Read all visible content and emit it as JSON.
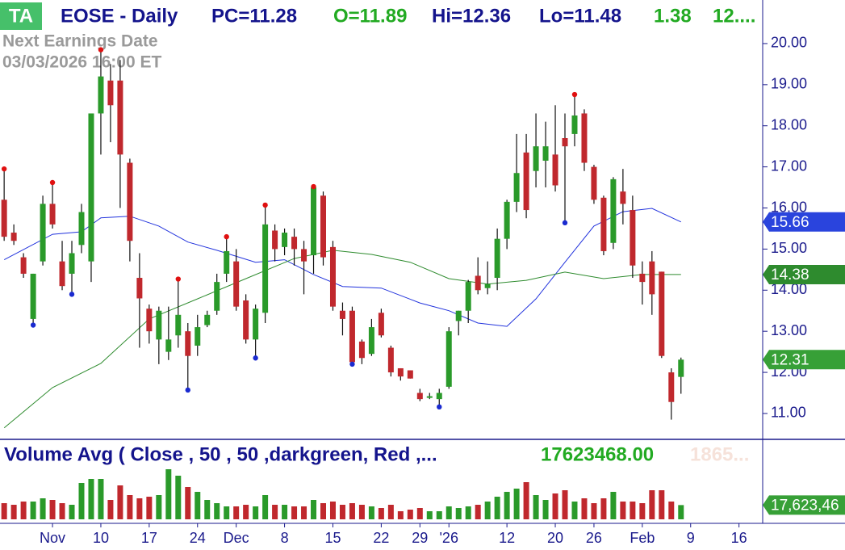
{
  "chart_data": [
    {
      "type": "candlestick",
      "badge": "TA",
      "title": "EOSE - Daily",
      "stats": [
        {
          "text": "PC=11.28",
          "color": "#14148c"
        },
        {
          "text": "O=11.89",
          "color": "#22aa22"
        },
        {
          "text": "Hi=12.36",
          "color": "#14148c"
        },
        {
          "text": "Lo=11.48",
          "color": "#14148c"
        },
        {
          "text": "1.38",
          "color": "#22aa22"
        },
        {
          "text": "12....",
          "color": "#22aa22"
        }
      ],
      "annotation": [
        "Next Earnings Date",
        "03/03/2026   16:00 ET"
      ],
      "x": [
        0,
        1,
        2,
        3,
        4,
        5,
        6,
        7,
        8,
        9,
        10,
        11,
        12,
        13,
        14,
        15,
        16,
        17,
        18,
        19,
        20,
        21,
        22,
        23,
        24,
        25,
        26,
        27,
        28,
        29,
        30,
        31,
        32,
        33,
        34,
        35,
        36,
        37,
        38,
        39,
        40,
        41,
        42,
        43,
        44,
        45,
        46,
        47,
        48,
        49,
        50,
        51,
        52,
        53,
        54,
        55,
        56,
        57,
        58,
        59,
        60,
        61,
        62,
        63,
        64,
        65,
        66,
        67,
        68,
        69,
        70
      ],
      "open": [
        16.2,
        15.4,
        14.8,
        13.3,
        14.7,
        16.1,
        14.7,
        14.4,
        15.1,
        14.7,
        18.3,
        19.1,
        19.1,
        17.1,
        14.3,
        13.55,
        12.8,
        12.5,
        12.9,
        13.0,
        12.65,
        13.15,
        13.5,
        14.4,
        14.7,
        13.75,
        12.8,
        13.45,
        15.45,
        15.05,
        15.3,
        15.0,
        14.85,
        16.3,
        15.05,
        13.5,
        13.5,
        12.75,
        12.45,
        13.45,
        12.6,
        12.1,
        12.05,
        11.5,
        11.38,
        11.35,
        11.65,
        13.25,
        13.5,
        14.35,
        14.05,
        14.3,
        15.25,
        16.15,
        17.35,
        16.9,
        17.15,
        17.3,
        17.7,
        17.8,
        18.3,
        17.0,
        16.25,
        15.15,
        16.4,
        15.95,
        14.4,
        14.7,
        14.45,
        12.0,
        11.89
      ],
      "high": [
        16.95,
        15.6,
        14.9,
        14.4,
        16.3,
        16.62,
        15.2,
        15.2,
        16.1,
        18.3,
        19.85,
        19.5,
        19.6,
        17.2,
        14.9,
        13.65,
        13.6,
        13.6,
        14.27,
        13.2,
        13.4,
        13.5,
        14.4,
        15.3,
        15.0,
        13.9,
        13.65,
        16.07,
        15.6,
        15.5,
        15.5,
        15.2,
        16.52,
        16.4,
        15.2,
        13.7,
        13.6,
        12.8,
        13.3,
        13.55,
        12.65,
        12.1,
        12.05,
        11.6,
        11.5,
        11.6,
        13.1,
        13.5,
        14.25,
        14.8,
        14.7,
        15.5,
        16.2,
        17.8,
        17.8,
        18.3,
        18.1,
        18.5,
        18.3,
        18.76,
        18.4,
        17.05,
        16.3,
        16.75,
        16.95,
        16.3,
        14.7,
        14.95,
        14.45,
        12.1,
        12.36
      ],
      "low": [
        15.2,
        15.1,
        14.3,
        13.15,
        14.6,
        15.5,
        14.0,
        13.9,
        14.9,
        14.2,
        17.3,
        17.6,
        16.0,
        14.7,
        12.6,
        12.7,
        12.2,
        12.3,
        12.6,
        11.57,
        12.4,
        13.1,
        13.4,
        14.2,
        13.5,
        12.7,
        12.35,
        13.2,
        14.7,
        14.85,
        14.6,
        13.9,
        14.4,
        14.6,
        13.5,
        12.9,
        12.2,
        12.2,
        12.4,
        12.85,
        11.9,
        11.8,
        11.85,
        11.3,
        11.35,
        11.16,
        11.6,
        12.9,
        13.2,
        13.9,
        13.9,
        14.0,
        15.0,
        15.9,
        15.75,
        16.5,
        16.5,
        16.4,
        15.64,
        17.5,
        16.9,
        16.1,
        14.85,
        15.0,
        15.6,
        14.3,
        13.65,
        13.4,
        12.35,
        10.85,
        11.48
      ],
      "close": [
        15.3,
        15.2,
        14.4,
        14.4,
        16.1,
        15.6,
        14.1,
        14.9,
        15.9,
        18.3,
        19.2,
        18.5,
        17.3,
        15.2,
        13.8,
        13.0,
        13.5,
        12.8,
        13.4,
        12.4,
        13.1,
        13.4,
        14.2,
        14.95,
        13.6,
        12.8,
        13.55,
        15.6,
        15.0,
        15.4,
        15.0,
        14.7,
        16.5,
        14.8,
        13.6,
        13.3,
        12.25,
        12.35,
        13.1,
        12.9,
        12.0,
        11.9,
        11.85,
        11.35,
        11.42,
        11.5,
        13.0,
        13.5,
        14.2,
        14.0,
        14.15,
        15.25,
        16.15,
        16.85,
        15.95,
        17.5,
        17.5,
        16.55,
        17.5,
        18.25,
        17.1,
        16.2,
        14.95,
        16.7,
        16.1,
        14.6,
        14.2,
        13.9,
        12.4,
        11.28,
        12.31
      ],
      "up_color": "#2a9a2a",
      "down_color": "#c0282d",
      "swing_highs": [
        0,
        5,
        10,
        18,
        23,
        27,
        32,
        59
      ],
      "swing_high_color": "#e01010",
      "swing_lows": [
        3,
        7,
        19,
        26,
        36,
        45,
        58
      ],
      "swing_low_color": "#1a2ad0",
      "series": [
        {
          "color": "#2233dd",
          "x": [
            0,
            5,
            8,
            10,
            13,
            16,
            19,
            22,
            26,
            29,
            32,
            35,
            39,
            43,
            46,
            49,
            52,
            55,
            58,
            61,
            64,
            67,
            70
          ],
          "values": [
            14.74,
            15.36,
            15.42,
            15.76,
            15.8,
            15.56,
            15.17,
            14.97,
            14.68,
            14.74,
            14.38,
            14.09,
            14.05,
            13.69,
            13.5,
            13.2,
            13.12,
            13.79,
            14.68,
            15.56,
            15.91,
            15.99,
            15.66
          ]
        },
        {
          "color": "#2e8b2e",
          "x": [
            0,
            5,
            10,
            15,
            20,
            25,
            30,
            34,
            38,
            42,
            46,
            50,
            54,
            58,
            62,
            66,
            70
          ],
          "values": [
            10.65,
            11.63,
            12.22,
            13.3,
            13.79,
            14.28,
            14.77,
            14.97,
            14.87,
            14.68,
            14.28,
            14.15,
            14.24,
            14.44,
            14.28,
            14.38,
            14.38
          ]
        }
      ],
      "last_labels": [
        {
          "value": 15.66,
          "color": "#2a44dd"
        },
        {
          "value": 14.38,
          "color": "#2e8b2e"
        },
        {
          "value": 12.31,
          "color": "#37a037"
        }
      ],
      "xlim": [
        -0.43,
        78.45
      ],
      "ylim": [
        10.39,
        21.06
      ],
      "yticks": [
        {
          "value": 11,
          "label": "11.00"
        },
        {
          "value": 12,
          "label": "12.00"
        },
        {
          "value": 13,
          "label": "13.00"
        },
        {
          "value": 14,
          "label": "14.00"
        },
        {
          "value": 15,
          "label": "15.00"
        },
        {
          "value": 16,
          "label": "16.00"
        },
        {
          "value": 17,
          "label": "17.00"
        },
        {
          "value": 18,
          "label": "18.00"
        },
        {
          "value": 19,
          "label": "19.00"
        },
        {
          "value": 20,
          "label": "20.00"
        }
      ]
    },
    {
      "type": "bar",
      "title": "Volume Avg ( Close , 50 , 50 ,darkgreen, Red ,...",
      "stats": [
        {
          "text": "17623468.00",
          "color": "#22aa22"
        },
        {
          "text": "1865...",
          "color": "#f6e2da"
        }
      ],
      "values": [
        20,
        18,
        22,
        22,
        26,
        24,
        20,
        18,
        45,
        50,
        50,
        24,
        42,
        30,
        26,
        28,
        30,
        62,
        54,
        40,
        34,
        24,
        20,
        16,
        16,
        18,
        16,
        30,
        18,
        18,
        16,
        16,
        24,
        20,
        22,
        18,
        20,
        18,
        16,
        14,
        18,
        10,
        12,
        14,
        10,
        10,
        16,
        14,
        16,
        18,
        22,
        28,
        34,
        38,
        46,
        30,
        24,
        32,
        36,
        22,
        26,
        20,
        26,
        34,
        22,
        22,
        20,
        36,
        36,
        22,
        17.623468
      ],
      "last_labels": [
        {
          "value": 17.623468,
          "label": "17,623,46",
          "color": "#37a037"
        }
      ],
      "ylim": [
        0,
        95
      ],
      "xlim": [
        -0.43,
        78.45
      ],
      "xticks": [
        {
          "value": 5,
          "label": "Nov"
        },
        {
          "value": 10,
          "label": "10"
        },
        {
          "value": 15,
          "label": "17"
        },
        {
          "value": 20,
          "label": "24"
        },
        {
          "value": 24,
          "label": "Dec"
        },
        {
          "value": 29,
          "label": "8"
        },
        {
          "value": 34,
          "label": "15"
        },
        {
          "value": 39,
          "label": "22"
        },
        {
          "value": 43,
          "label": "29"
        },
        {
          "value": 46,
          "label": "'26"
        },
        {
          "value": 52,
          "label": "12"
        },
        {
          "value": 57,
          "label": "20"
        },
        {
          "value": 61,
          "label": "26"
        },
        {
          "value": 66,
          "label": "Feb"
        },
        {
          "value": 71,
          "label": "9"
        },
        {
          "value": 76,
          "label": "16"
        }
      ]
    }
  ]
}
